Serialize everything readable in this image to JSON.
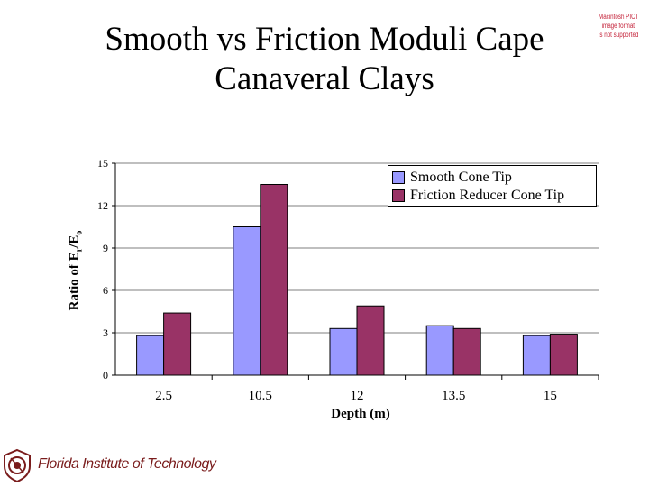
{
  "slide": {
    "title_line1": "Smooth vs Friction Moduli Cape",
    "title_line2": "Canaveral Clays"
  },
  "pict_notice": [
    "Macintosh PICT",
    "image format",
    "is not supported"
  ],
  "colors": {
    "smooth": "#9999ff",
    "friction": "#993366",
    "pict_notice": "#c4233a",
    "footer": "#7a1c1c"
  },
  "chart_data": {
    "type": "bar",
    "title": "",
    "xlabel": "Depth (m)",
    "ylabel_main": "Ratio of E",
    "ylabel_sub1": "r",
    "ylabel_mid": "/E",
    "ylabel_sub2": "o",
    "categories": [
      "2.5",
      "10.5",
      "12",
      "13.5",
      "15"
    ],
    "series": [
      {
        "name": "Smooth Cone Tip",
        "values": [
          2.8,
          10.5,
          3.3,
          3.5,
          2.8
        ]
      },
      {
        "name": "Friction Reducer Cone Tip",
        "values": [
          4.4,
          13.5,
          4.9,
          3.3,
          2.9
        ]
      }
    ],
    "ylim": [
      0,
      15
    ],
    "yticks": [
      "0",
      "3",
      "6",
      "9",
      "12",
      "15"
    ],
    "grid": true,
    "legend_position": "top-right"
  },
  "footer": {
    "institution": "Florida Institute of Technology",
    "logo_icon": "fit-seal-icon"
  }
}
